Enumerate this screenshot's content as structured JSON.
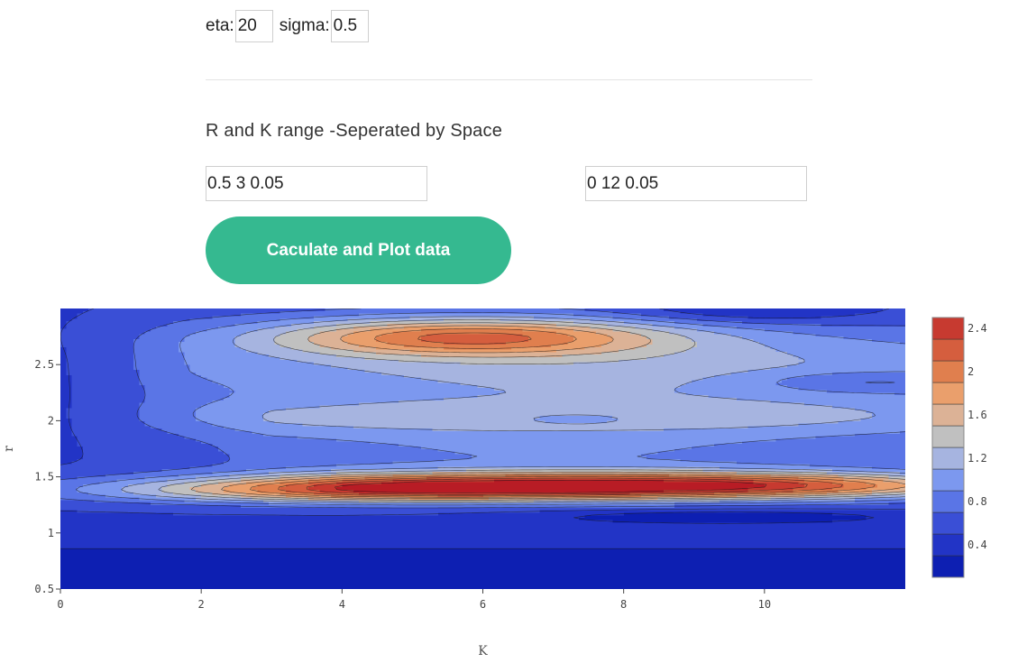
{
  "params": {
    "eta_label": "eta:",
    "eta_value": "20",
    "sigma_label": "sigma:",
    "sigma_value": "0.5"
  },
  "ranges": {
    "heading": "R and K range -Seperated by Space",
    "r_range_value": "0.5 3 0.05",
    "k_range_value": "0 12 0.05"
  },
  "actions": {
    "calculate_label": "Caculate and Plot data"
  },
  "chart_data": {
    "type": "heatmap",
    "subtype": "contour",
    "title": "",
    "xlabel": "K",
    "ylabel": "r",
    "xlim": [
      0,
      12
    ],
    "ylim": [
      0.5,
      3
    ],
    "x_ticks": [
      0,
      2,
      4,
      6,
      8,
      10
    ],
    "y_ticks": [
      0.5,
      1,
      1.5,
      2,
      2.5
    ],
    "x_tick_labels": [
      "0",
      "2",
      "4",
      "6",
      "8",
      "10"
    ],
    "y_tick_labels": [
      "0.5",
      "1",
      "1.5",
      "2",
      "2.5"
    ],
    "colorscale": "RdBu (reversed)",
    "zlim": [
      0.1,
      2.5
    ],
    "contour_step": 0.2,
    "colorbar_ticks": [
      0.4,
      0.8,
      1.2,
      1.6,
      2,
      2.4
    ],
    "colorbar_tick_labels": [
      "0.4",
      "0.8",
      "1.2",
      "1.6",
      "2",
      "2.4"
    ],
    "colorbar_colors": [
      "#0d1fb2",
      "#2234c6",
      "#3a4fd6",
      "#5a75e6",
      "#7c98ef",
      "#a6b4e0",
      "#c0c0c0",
      "#dcb296",
      "#ea9f6c",
      "#e07f4e",
      "#d55e3e",
      "#c73a30",
      "#b81c25"
    ],
    "features": [
      {
        "k": 6.9,
        "r": 1.42,
        "value": 2.45
      },
      {
        "k": 5.8,
        "r": 2.75,
        "value": 1.75
      },
      {
        "k": 9.4,
        "r": 1.14,
        "value": 0.12
      },
      {
        "k": 7.3,
        "r": 2.02,
        "value": 0.35
      },
      {
        "k": 11.4,
        "r": 2.35,
        "value": 0.35
      },
      {
        "k": 9.8,
        "r": 2.95,
        "value": 0.3
      },
      {
        "k": 1.0,
        "r": 2.0,
        "value": 0.2
      }
    ]
  }
}
